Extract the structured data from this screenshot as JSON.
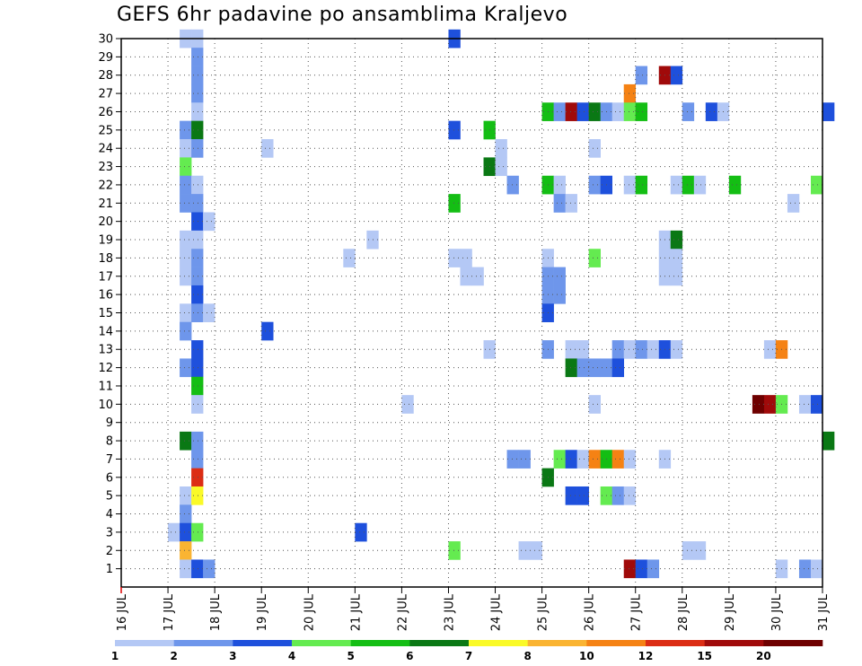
{
  "chart_data": {
    "type": "heatmap",
    "title": "GEFS 6hr padavine po ansamblima Kraljevo",
    "xlabel": "",
    "ylabel": "",
    "x_ticks": [
      "16 JUL",
      "17 JUL",
      "18 JUL",
      "19 JUL",
      "20 JUL",
      "21 JUL",
      "22 JUL",
      "23 JUL",
      "24 JUL",
      "25 JUL",
      "26 JUL",
      "27 JUL",
      "28 JUL",
      "29 JUL",
      "30 JUL",
      "31 JUL"
    ],
    "y_ticks": [
      "1",
      "2",
      "3",
      "4",
      "5",
      "6",
      "7",
      "8",
      "9",
      "10",
      "11",
      "12",
      "13",
      "14",
      "15",
      "16",
      "17",
      "18",
      "19",
      "20",
      "21",
      "22",
      "23",
      "24",
      "25",
      "26",
      "27",
      "28",
      "29",
      "30"
    ],
    "xlim": [
      "16 JUL",
      "31 JUL"
    ],
    "ylim": [
      0,
      30
    ],
    "grid": true,
    "timestep_hours": 6,
    "colorbar": {
      "labels": [
        "1",
        "2",
        "3",
        "4",
        "5",
        "6",
        "7",
        "8",
        "10",
        "12",
        "15",
        "20"
      ],
      "colors": [
        "#b4c8f5",
        "#6e96eb",
        "#1e50dc",
        "#64eb50",
        "#14be14",
        "#0a7814",
        "#fafa28",
        "#fab432",
        "#f58214",
        "#dc2d14",
        "#a00a0a",
        "#6e0000"
      ]
    },
    "cells": [
      [
        "17 JUL 06",
        30,
        1
      ],
      [
        "17 JUL 12",
        30,
        1
      ],
      [
        "23 JUL 00",
        30,
        3
      ],
      [
        "17 JUL 12",
        29,
        2
      ],
      [
        "17 JUL 12",
        28,
        2
      ],
      [
        "27 JUL 00",
        28,
        2
      ],
      [
        "27 JUL 12",
        28,
        15
      ],
      [
        "27 JUL 18",
        28,
        3
      ],
      [
        "17 JUL 12",
        27,
        2
      ],
      [
        "26 JUL 18",
        27,
        10
      ],
      [
        "17 JUL 12",
        26,
        1
      ],
      [
        "25 JUL 00",
        26,
        5
      ],
      [
        "25 JUL 06",
        26,
        2
      ],
      [
        "25 JUL 12",
        26,
        15
      ],
      [
        "25 JUL 18",
        26,
        3
      ],
      [
        "26 JUL 00",
        26,
        6
      ],
      [
        "26 JUL 06",
        26,
        2
      ],
      [
        "26 JUL 12",
        26,
        1
      ],
      [
        "26 JUL 18",
        26,
        4
      ],
      [
        "27 JUL 00",
        26,
        5
      ],
      [
        "28 JUL 00",
        26,
        2
      ],
      [
        "28 JUL 12",
        26,
        3
      ],
      [
        "28 JUL 18",
        26,
        1
      ],
      [
        "31 JUL 00",
        26,
        3
      ],
      [
        "17 JUL 06",
        25,
        2
      ],
      [
        "17 JUL 12",
        25,
        6
      ],
      [
        "23 JUL 00",
        25,
        3
      ],
      [
        "23 JUL 18",
        25,
        5
      ],
      [
        "17 JUL 06",
        24,
        1
      ],
      [
        "17 JUL 12",
        24,
        2
      ],
      [
        "19 JUL 00",
        24,
        1
      ],
      [
        "24 JUL 00",
        24,
        1
      ],
      [
        "26 JUL 00",
        24,
        1
      ],
      [
        "17 JUL 06",
        23,
        4
      ],
      [
        "23 JUL 18",
        23,
        6
      ],
      [
        "24 JUL 00",
        23,
        1
      ],
      [
        "17 JUL 06",
        22,
        2
      ],
      [
        "17 JUL 12",
        22,
        1
      ],
      [
        "24 JUL 06",
        22,
        2
      ],
      [
        "25 JUL 00",
        22,
        5
      ],
      [
        "25 JUL 06",
        22,
        1
      ],
      [
        "26 JUL 00",
        22,
        2
      ],
      [
        "26 JUL 06",
        22,
        3
      ],
      [
        "26 JUL 18",
        22,
        1
      ],
      [
        "27 JUL 00",
        22,
        5
      ],
      [
        "27 JUL 18",
        22,
        1
      ],
      [
        "28 JUL 00",
        22,
        5
      ],
      [
        "28 JUL 06",
        22,
        1
      ],
      [
        "29 JUL 00",
        22,
        5
      ],
      [
        "30 JUL 18",
        22,
        4
      ],
      [
        "17 JUL 06",
        21,
        2
      ],
      [
        "17 JUL 12",
        21,
        2
      ],
      [
        "23 JUL 00",
        21,
        5
      ],
      [
        "25 JUL 06",
        21,
        2
      ],
      [
        "25 JUL 12",
        21,
        1
      ],
      [
        "30 JUL 06",
        21,
        1
      ],
      [
        "17 JUL 12",
        20,
        3
      ],
      [
        "17 JUL 18",
        20,
        1
      ],
      [
        "17 JUL 06",
        19,
        1
      ],
      [
        "17 JUL 12",
        19,
        1
      ],
      [
        "21 JUL 06",
        19,
        1
      ],
      [
        "27 JUL 12",
        19,
        1
      ],
      [
        "27 JUL 18",
        19,
        6
      ],
      [
        "17 JUL 06",
        18,
        1
      ],
      [
        "17 JUL 12",
        18,
        2
      ],
      [
        "20 JUL 18",
        18,
        1
      ],
      [
        "23 JUL 00",
        18,
        1
      ],
      [
        "23 JUL 06",
        18,
        1
      ],
      [
        "25 JUL 00",
        18,
        1
      ],
      [
        "26 JUL 00",
        18,
        4
      ],
      [
        "27 JUL 12",
        18,
        1
      ],
      [
        "27 JUL 18",
        18,
        1
      ],
      [
        "17 JUL 06",
        17,
        1
      ],
      [
        "17 JUL 12",
        17,
        2
      ],
      [
        "23 JUL 06",
        17,
        1
      ],
      [
        "23 JUL 12",
        17,
        1
      ],
      [
        "25 JUL 00",
        17,
        2
      ],
      [
        "25 JUL 06",
        17,
        2
      ],
      [
        "27 JUL 12",
        17,
        1
      ],
      [
        "27 JUL 18",
        17,
        1
      ],
      [
        "17 JUL 12",
        16,
        3
      ],
      [
        "25 JUL 00",
        16,
        2
      ],
      [
        "25 JUL 06",
        16,
        2
      ],
      [
        "17 JUL 06",
        15,
        1
      ],
      [
        "17 JUL 12",
        15,
        2
      ],
      [
        "17 JUL 18",
        15,
        1
      ],
      [
        "25 JUL 00",
        15,
        3
      ],
      [
        "17 JUL 06",
        14,
        2
      ],
      [
        "19 JUL 00",
        14,
        3
      ],
      [
        "17 JUL 12",
        13,
        3
      ],
      [
        "23 JUL 18",
        13,
        1
      ],
      [
        "25 JUL 00",
        13,
        2
      ],
      [
        "25 JUL 12",
        13,
        1
      ],
      [
        "25 JUL 18",
        13,
        1
      ],
      [
        "26 JUL 12",
        13,
        2
      ],
      [
        "26 JUL 18",
        13,
        1
      ],
      [
        "27 JUL 00",
        13,
        2
      ],
      [
        "27 JUL 06",
        13,
        1
      ],
      [
        "27 JUL 12",
        13,
        3
      ],
      [
        "27 JUL 18",
        13,
        1
      ],
      [
        "29 JUL 18",
        13,
        1
      ],
      [
        "30 JUL 00",
        13,
        10
      ],
      [
        "17 JUL 06",
        12,
        2
      ],
      [
        "17 JUL 12",
        12,
        3
      ],
      [
        "25 JUL 12",
        12,
        6
      ],
      [
        "25 JUL 18",
        12,
        2
      ],
      [
        "26 JUL 00",
        12,
        2
      ],
      [
        "26 JUL 06",
        12,
        2
      ],
      [
        "26 JUL 12",
        12,
        3
      ],
      [
        "17 JUL 12",
        11,
        5
      ],
      [
        "17 JUL 12",
        10,
        1
      ],
      [
        "22 JUL 00",
        10,
        1
      ],
      [
        "26 JUL 00",
        10,
        1
      ],
      [
        "29 JUL 12",
        10,
        20
      ],
      [
        "29 JUL 18",
        10,
        15
      ],
      [
        "30 JUL 00",
        10,
        4
      ],
      [
        "30 JUL 12",
        10,
        1
      ],
      [
        "30 JUL 18",
        10,
        3
      ],
      [
        "17 JUL 06",
        8,
        6
      ],
      [
        "17 JUL 12",
        8,
        2
      ],
      [
        "31 JUL 00",
        8,
        6
      ],
      [
        "17 JUL 12",
        7,
        2
      ],
      [
        "24 JUL 06",
        7,
        2
      ],
      [
        "24 JUL 12",
        7,
        2
      ],
      [
        "25 JUL 06",
        7,
        4
      ],
      [
        "25 JUL 12",
        7,
        3
      ],
      [
        "25 JUL 18",
        7,
        1
      ],
      [
        "26 JUL 00",
        7,
        10
      ],
      [
        "26 JUL 06",
        7,
        5
      ],
      [
        "26 JUL 12",
        7,
        10
      ],
      [
        "26 JUL 18",
        7,
        1
      ],
      [
        "27 JUL 12",
        7,
        1
      ],
      [
        "17 JUL 12",
        6,
        12
      ],
      [
        "25 JUL 00",
        6,
        6
      ],
      [
        "17 JUL 06",
        5,
        1
      ],
      [
        "17 JUL 12",
        5,
        7
      ],
      [
        "25 JUL 12",
        5,
        3
      ],
      [
        "25 JUL 18",
        5,
        3
      ],
      [
        "26 JUL 06",
        5,
        4
      ],
      [
        "26 JUL 12",
        5,
        2
      ],
      [
        "26 JUL 18",
        5,
        1
      ],
      [
        "17 JUL 06",
        4,
        2
      ],
      [
        "17 JUL 00",
        3,
        1
      ],
      [
        "17 JUL 06",
        3,
        3
      ],
      [
        "17 JUL 12",
        3,
        4
      ],
      [
        "21 JUL 00",
        3,
        3
      ],
      [
        "17 JUL 06",
        2,
        8
      ],
      [
        "23 JUL 00",
        2,
        4
      ],
      [
        "24 JUL 12",
        2,
        1
      ],
      [
        "24 JUL 18",
        2,
        1
      ],
      [
        "28 JUL 00",
        2,
        1
      ],
      [
        "28 JUL 06",
        2,
        1
      ],
      [
        "17 JUL 06",
        1,
        1
      ],
      [
        "17 JUL 12",
        1,
        3
      ],
      [
        "17 JUL 18",
        1,
        2
      ],
      [
        "26 JUL 18",
        1,
        15
      ],
      [
        "27 JUL 00",
        1,
        3
      ],
      [
        "27 JUL 06",
        1,
        2
      ],
      [
        "30 JUL 00",
        1,
        1
      ],
      [
        "30 JUL 12",
        1,
        2
      ],
      [
        "30 JUL 18",
        1,
        1
      ]
    ]
  }
}
